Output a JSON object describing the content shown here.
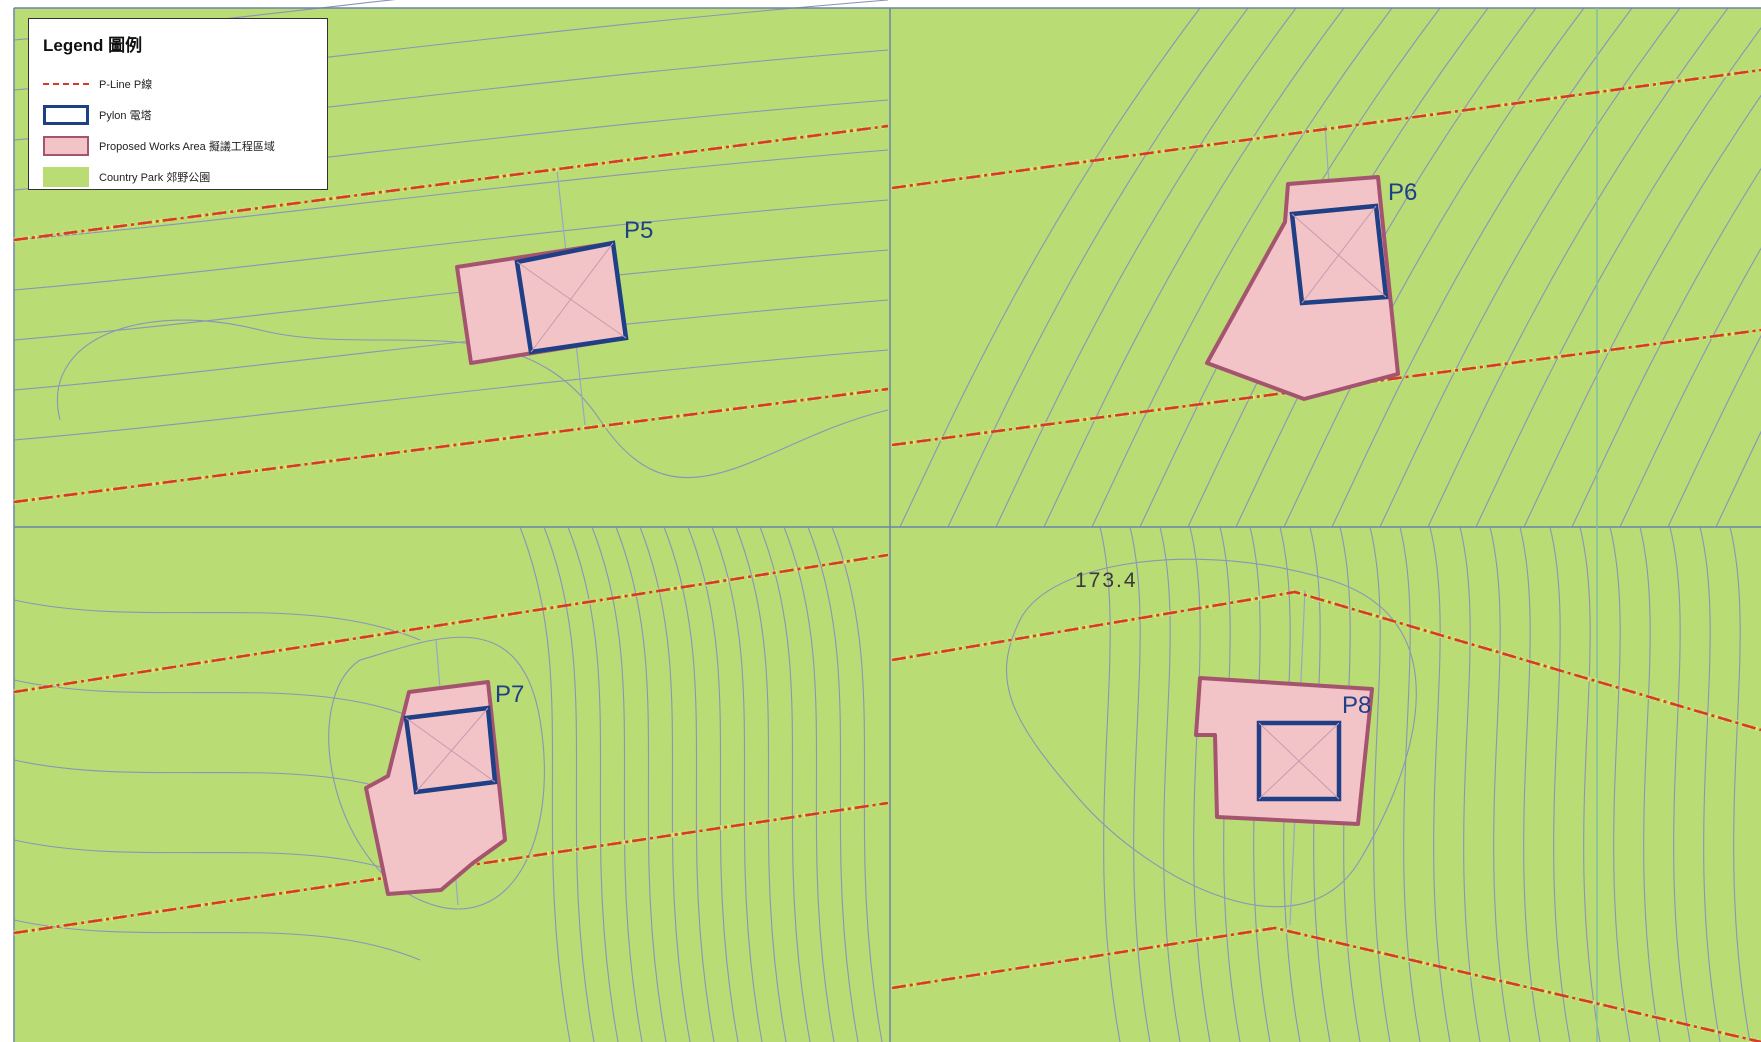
{
  "legend": {
    "title": "Legend 圖例",
    "items": [
      {
        "key": "pline",
        "label": "P-Line P線"
      },
      {
        "key": "pylon",
        "label": "Pylon 電塔"
      },
      {
        "key": "works",
        "label": "Proposed Works Area 擬議工程區域"
      },
      {
        "key": "park",
        "label": "Country Park 郊野公園"
      }
    ]
  },
  "colors": {
    "country_park": "#b9dc74",
    "works_fill": "#f2c4c8",
    "works_border": "#a55470",
    "pylon_border": "#1f3f86",
    "pline": "#d83a2a",
    "contour": "#8d94b8",
    "grid": "#6a84a8"
  },
  "pylons": [
    {
      "id": "P5",
      "label": "P5"
    },
    {
      "id": "P6",
      "label": "P6"
    },
    {
      "id": "P7",
      "label": "P7"
    },
    {
      "id": "P8",
      "label": "P8"
    }
  ],
  "spot_height": "173.4"
}
